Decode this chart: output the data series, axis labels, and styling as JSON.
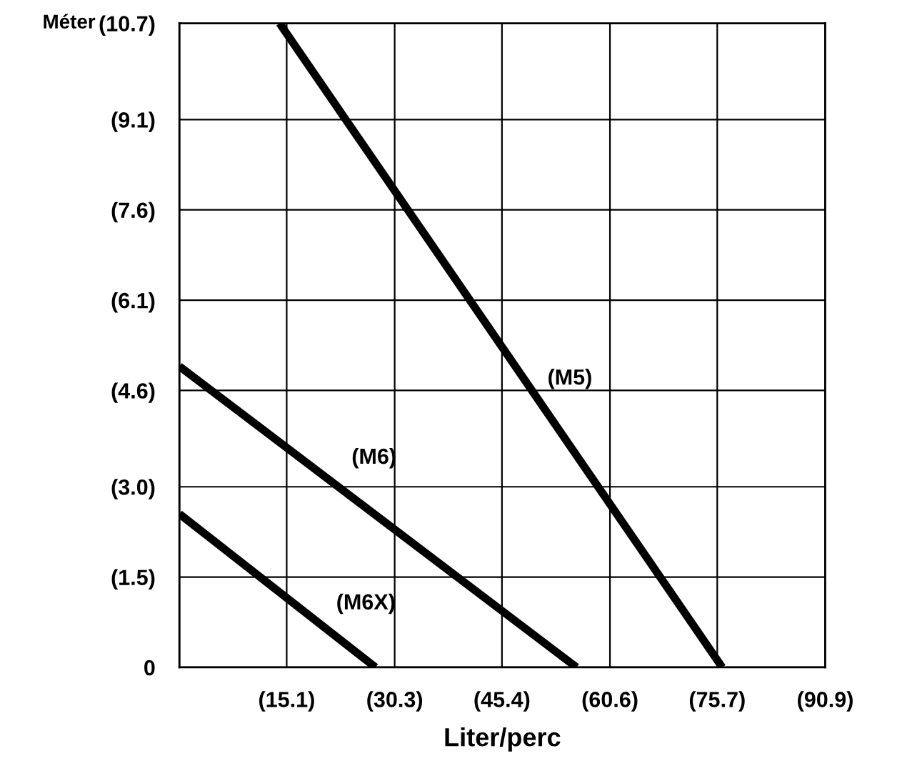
{
  "chart_data": {
    "type": "line",
    "xlabel": "Liter/perc",
    "ylabel": "Méter",
    "xlim": [
      0,
      90.9
    ],
    "ylim": [
      0,
      10.7
    ],
    "xticks": [
      {
        "value": 0,
        "label": null
      },
      {
        "value": 15.1,
        "label": "(15.1)"
      },
      {
        "value": 30.3,
        "label": "(30.3)"
      },
      {
        "value": 45.4,
        "label": "(45.4)"
      },
      {
        "value": 60.6,
        "label": "(60.6)"
      },
      {
        "value": 75.7,
        "label": "(75.7)"
      },
      {
        "value": 90.9,
        "label": "(90.9)"
      }
    ],
    "yticks": [
      0,
      {
        "value": 1.5,
        "label": "(1.5)"
      },
      {
        "value": 3.0,
        "label": "(3.0)"
      },
      {
        "value": 4.6,
        "label": "(4.6)"
      },
      {
        "value": 6.1,
        "label": "(6.1)"
      },
      {
        "value": 7.6,
        "label": "(7.6)"
      },
      {
        "value": 9.1,
        "label": "(9.1)"
      },
      {
        "value": 10.7,
        "label": "(10.7)"
      }
    ],
    "grid": true,
    "marker": "none",
    "line_style": "solid",
    "series": [
      {
        "name": "(M5)",
        "color": "#000000",
        "x": [
          14.1,
          76.4
        ],
        "values": [
          10.7,
          0
        ]
      },
      {
        "name": "(M6)",
        "color": "#000000",
        "x": [
          0,
          55.9
        ],
        "values": [
          5.0,
          0
        ]
      },
      {
        "name": "(M6X)",
        "color": "#000000",
        "x": [
          0,
          27.6
        ],
        "values": [
          2.55,
          0
        ]
      }
    ]
  }
}
